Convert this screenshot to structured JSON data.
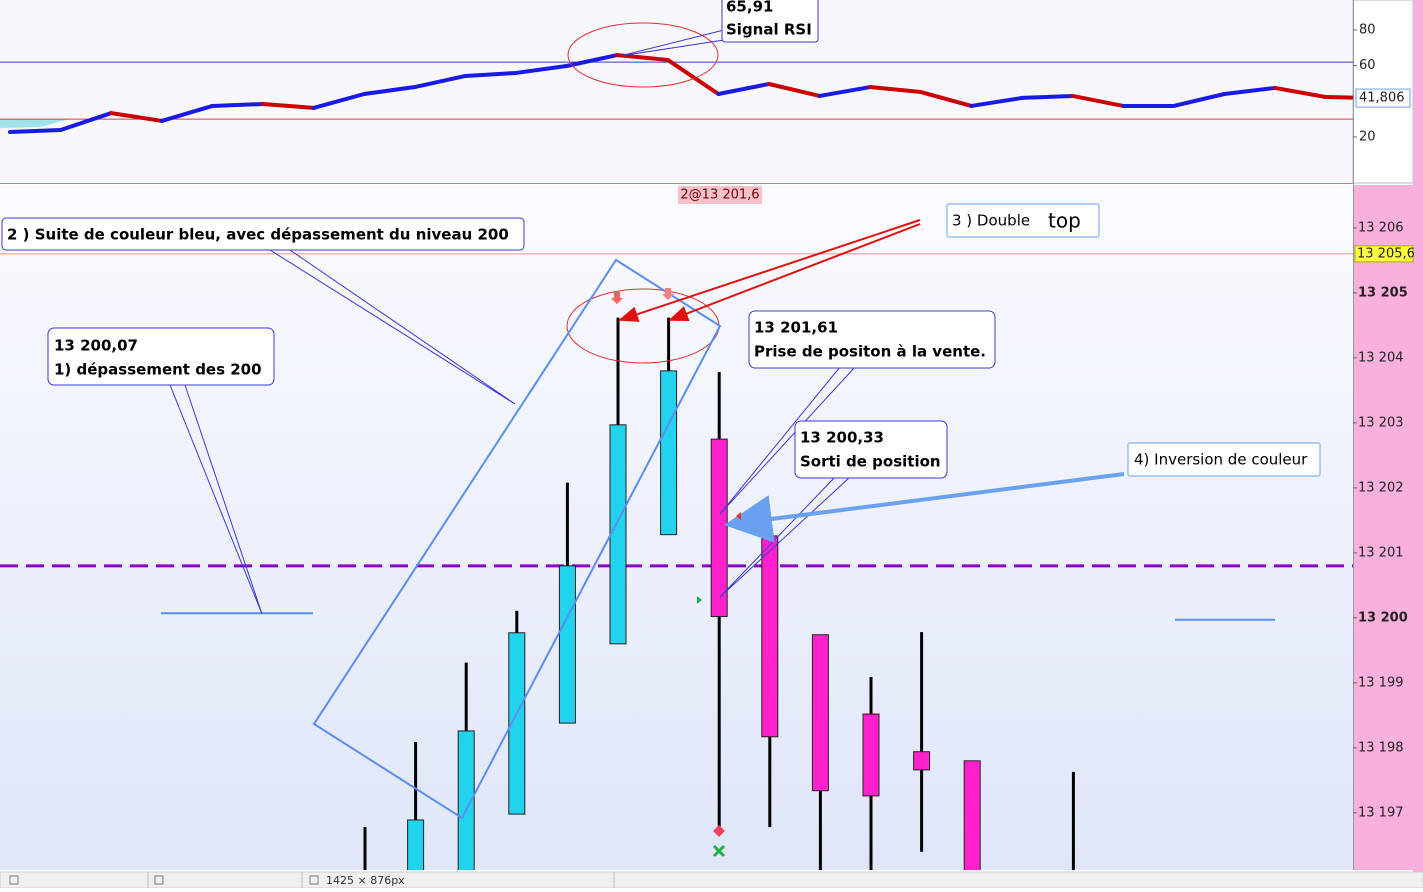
{
  "chart_data": [
    {
      "type": "line",
      "values": [
        22.8,
        23.9,
        33.4,
        29.0,
        37.4,
        38.5,
        36.3,
        44.1,
        48.0,
        54.2,
        55.9,
        59.8,
        65.91,
        63.2,
        44.1,
        49.7,
        43.0,
        48.0,
        45.2,
        37.4,
        41.9,
        43.0,
        37.4,
        37.4,
        44.1,
        47.5,
        42.4,
        41.806
      ],
      "up_color": "#1a1ae6",
      "down_color": "#cc0000",
      "ylim": [
        -5.8,
        96.8
      ],
      "yticks": [
        20,
        60,
        80
      ],
      "levels": [
        {
          "value": 62,
          "color": "#3a3ad0"
        },
        {
          "value": 30,
          "color": "#d04040"
        }
      ],
      "last_label": "41,806"
    },
    {
      "type": "candlestick",
      "open": [
        13196.0,
        13196.0,
        13196.1,
        13196.98,
        13198.38,
        13199.6,
        13201.28,
        13202.75,
        13201.26,
        13199.74,
        13198.52,
        13197.94,
        13197.8,
        null,
        13196.0
      ],
      "high": [
        13196.78,
        13198.09,
        13199.31,
        13200.11,
        13202.08,
        13204.62,
        13204.62,
        13203.78,
        13201.26,
        13199.74,
        13199.09,
        13199.78,
        13197.8,
        null,
        13197.63
      ],
      "low": [
        13195.9,
        13195.9,
        13195.9,
        13196.98,
        13198.38,
        13199.6,
        13201.28,
        13196.71,
        13196.78,
        13196.0,
        13196.0,
        13196.4,
        13195.9,
        null,
        13195.9
      ],
      "close": [
        13196.1,
        13196.89,
        13198.26,
        13199.77,
        13200.8,
        13202.97,
        13203.8,
        13200.02,
        13198.17,
        13197.34,
        13197.26,
        13197.66,
        13196.0,
        null,
        13195.95
      ],
      "up_color": "#22d3ee",
      "down_color": "#ff22cc",
      "ylim": [
        13196.12,
        13206.66
      ],
      "yticks": [
        {
          "value": 13197,
          "label": "13 197"
        },
        {
          "value": 13198,
          "label": "13 198"
        },
        {
          "value": 13199,
          "label": "13 199"
        },
        {
          "value": 13200,
          "label": "13 200"
        },
        {
          "value": 13201,
          "label": "13 201"
        },
        {
          "value": 13202,
          "label": "13 202"
        },
        {
          "value": 13203,
          "label": "13 203"
        },
        {
          "value": 13204,
          "label": "13 204"
        },
        {
          "value": 13205,
          "label": "13 205"
        },
        {
          "value": 13206,
          "label": "13 206"
        }
      ],
      "levels": [
        {
          "value": 13205.6,
          "color": "#f09090",
          "label": "13 205,6"
        },
        {
          "value": 13200.8,
          "color": "#8a00c8",
          "dashed": true
        }
      ],
      "segments": [
        {
          "value": 13200.07,
          "color": "#5b8def"
        },
        {
          "value": 13199.97,
          "color": "#5b8def"
        }
      ],
      "order_label": "2@13 201,6"
    }
  ],
  "annotations": [
    {
      "lines": [
        "65,91",
        "Signal RSI"
      ]
    },
    {
      "lines": [
        "2 ) Suite de couleur bleu, avec dépassement du niveau 200"
      ]
    },
    {
      "lines": [
        "3 ) Double",
        "top"
      ]
    },
    {
      "lines": [
        "13 200,07",
        "1)  dépassement des 200"
      ]
    },
    {
      "lines": [
        "13 201,61",
        "Prise de positon à la vente."
      ]
    },
    {
      "lines": [
        "13 200,33",
        "Sorti de position"
      ]
    },
    {
      "lines": [
        "4) Inversion de couleur"
      ]
    }
  ],
  "status_bar": {
    "size": "1425 × 876px"
  }
}
